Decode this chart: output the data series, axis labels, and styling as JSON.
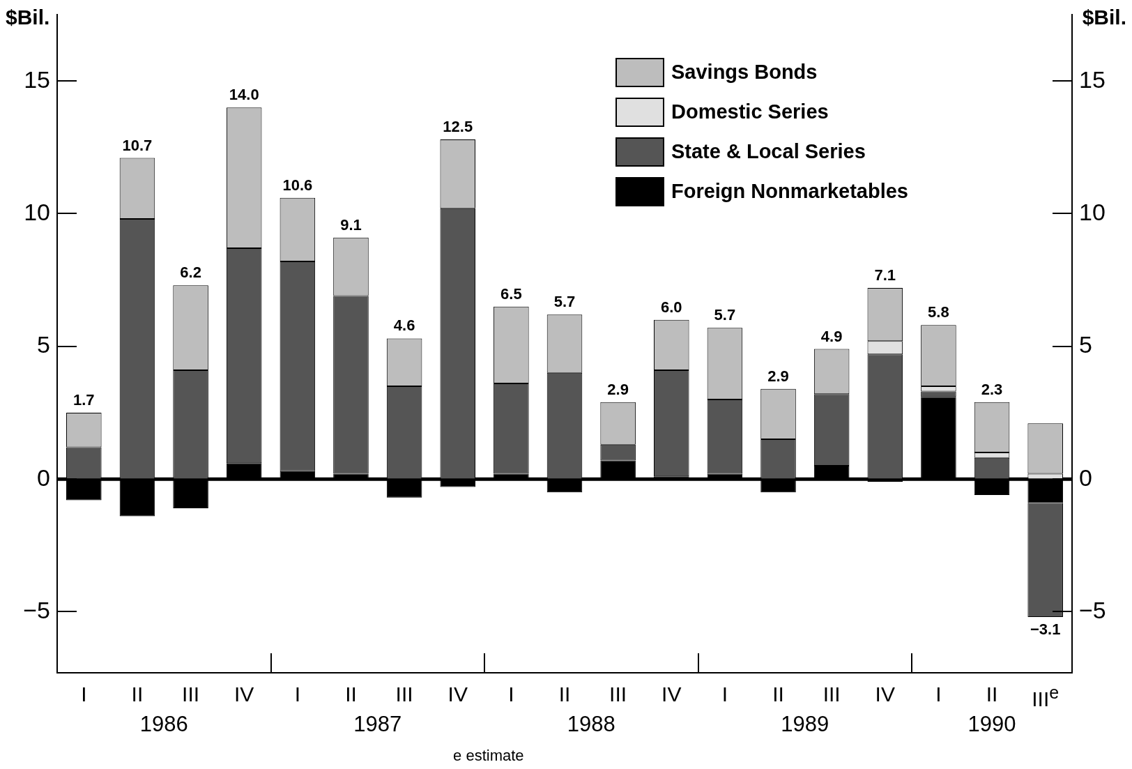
{
  "chart_data": {
    "type": "bar",
    "stacked": true,
    "ylabel": "$Bil.",
    "y2label": "$Bil.",
    "categories": [
      "I",
      "II",
      "III",
      "IV",
      "I",
      "II",
      "III",
      "IV",
      "I",
      "II",
      "III",
      "IV",
      "I",
      "II",
      "III",
      "IV",
      "I",
      "II",
      "III$^{e}$"
    ],
    "series": [
      {
        "name": "Foreign Nonmarketables",
        "color": "#000000",
        "values": [
          -0.8,
          -1.4,
          -1.1,
          0.6,
          0.3,
          0.2,
          -0.7,
          -0.3,
          0.2,
          -0.5,
          0.7,
          0.1,
          0.2,
          -0.5,
          0.5,
          -0.1,
          3.1,
          -0.6,
          -0.9
        ]
      },
      {
        "name": "State & Local Series",
        "color": "#555555",
        "values": [
          1.2,
          9.8,
          4.1,
          8.1,
          7.9,
          6.7,
          3.5,
          10.2,
          3.4,
          4.0,
          0.6,
          4.0,
          2.8,
          1.5,
          2.7,
          4.7,
          0.2,
          0.8,
          -4.3
        ]
      },
      {
        "name": "Domestic Series",
        "color": "#e0e0e0",
        "values": [
          null,
          null,
          null,
          null,
          null,
          null,
          null,
          null,
          null,
          null,
          null,
          null,
          null,
          null,
          null,
          0.5,
          0.2,
          0.2,
          0.2
        ]
      },
      {
        "name": "Savings Bonds",
        "color": "#bdbdbd",
        "values": [
          1.3,
          2.3,
          3.2,
          5.3,
          2.4,
          2.2,
          1.8,
          2.6,
          2.9,
          2.2,
          1.6,
          1.9,
          2.7,
          1.9,
          1.7,
          2.0,
          2.3,
          1.9,
          1.9
        ]
      }
    ],
    "totals": [
      "1.7",
      "10.7",
      "6.2",
      "14.0",
      "10.6",
      "9.1",
      "4.6",
      "12.5",
      "6.5",
      "5.7",
      "2.9",
      "6.0",
      "5.7",
      "2.9",
      "4.9",
      "7.1",
      "5.8",
      "2.3",
      "−3.1"
    ],
    "ylim": [
      -7.3,
      17.5
    ],
    "yticks": [
      {
        "value": -5,
        "label": "−5"
      },
      0,
      5,
      10,
      15
    ],
    "y2lim": [
      -7.3,
      17.5
    ],
    "y2ticks": [
      {
        "value": -5,
        "label": "−5"
      },
      0,
      5,
      10,
      15
    ],
    "ref_lines": [
      {
        "axis": "y",
        "value": 0
      }
    ],
    "legend": "top right",
    "annotations": [
      "1986",
      "1987",
      "1988",
      "1989",
      "1990",
      "e estimate"
    ]
  }
}
